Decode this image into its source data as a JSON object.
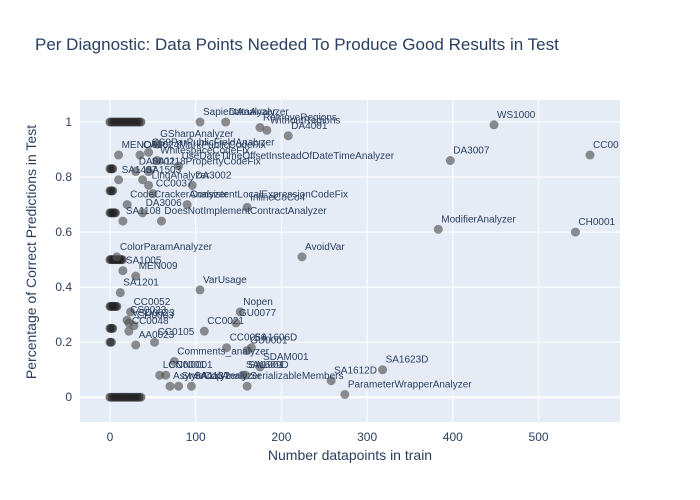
{
  "chart_data": {
    "type": "scatter",
    "title": "Per Diagnostic: Data Points Needed To Produce Good Results in Test",
    "xlabel": "Number datapoints in train",
    "ylabel": "Percentage of Correct Predictions in Test",
    "xlim": [
      -35,
      595
    ],
    "ylim": [
      -0.09,
      1.08
    ],
    "xticks": [
      0,
      100,
      200,
      300,
      400,
      500
    ],
    "yticks": [
      0,
      0.2,
      0.4,
      0.6,
      0.8,
      1
    ],
    "grid": true,
    "marker_color": "#555555",
    "background_color": "#e5ecf6",
    "points": [
      {
        "x": 448,
        "y": 0.99,
        "label": "WS1000"
      },
      {
        "x": 560,
        "y": 0.88,
        "label": "CC00"
      },
      {
        "x": 397,
        "y": 0.86,
        "label": "DA3007"
      },
      {
        "x": 383,
        "y": 0.61,
        "label": "ModifierAnalyzer"
      },
      {
        "x": 543,
        "y": 0.6,
        "label": "CH0001"
      },
      {
        "x": 224,
        "y": 0.51,
        "label": "AvoidVar"
      },
      {
        "x": 318,
        "y": 0.1,
        "label": "SA1623D"
      },
      {
        "x": 258,
        "y": 0.06,
        "label": "SA1612D"
      },
      {
        "x": 274,
        "y": 0.01,
        "label": "ParameterWrapperAnalyzer"
      },
      {
        "x": 208,
        "y": 0.95,
        "label": "DA4001"
      },
      {
        "x": 183,
        "y": 0.97,
        "label": "WithoutRegions"
      },
      {
        "x": 175,
        "y": 0.98,
        "label": "RemoveRegions"
      },
      {
        "x": 135,
        "y": 1.0,
        "label": "DataAnalyzer"
      },
      {
        "x": 105,
        "y": 1.0,
        "label": "SapientAnalyzer"
      },
      {
        "x": 45,
        "y": 0.89,
        "label": "CS9ParPublicFieldAnalyzer"
      },
      {
        "x": 55,
        "y": 0.92,
        "label": "GSharpAnalyzer"
      },
      {
        "x": 35,
        "y": 0.88,
        "label": "CA1024MarkPublicCodeFix"
      },
      {
        "x": 10,
        "y": 0.88,
        "label": "MENO006"
      },
      {
        "x": 55,
        "y": 0.86,
        "label": "WhitespaceCodeFix"
      },
      {
        "x": 80,
        "y": 0.84,
        "label": "UseDateTimeOffsetInsteadOfDateTimeAnalyzer"
      },
      {
        "x": 45,
        "y": 0.82,
        "label": "SA1118PropertyCodeFix"
      },
      {
        "x": 30,
        "y": 0.82,
        "label": "DA0002"
      },
      {
        "x": 10,
        "y": 0.79,
        "label": "SA1407"
      },
      {
        "x": 38,
        "y": 0.79,
        "label": "SA1503"
      },
      {
        "x": 45,
        "y": 0.77,
        "label": "LinqAnalyzer"
      },
      {
        "x": 96,
        "y": 0.77,
        "label": "DA3002"
      },
      {
        "x": 50,
        "y": 0.74,
        "label": "CC0037"
      },
      {
        "x": 20,
        "y": 0.7,
        "label": "CodeCrackerAnalyzer"
      },
      {
        "x": 90,
        "y": 0.7,
        "label": "ConsistentLocalExpressionCodeFix"
      },
      {
        "x": 160,
        "y": 0.69,
        "label": "InlineCoCo4"
      },
      {
        "x": 38,
        "y": 0.67,
        "label": "DA3006"
      },
      {
        "x": 15,
        "y": 0.64,
        "label": "SA1108"
      },
      {
        "x": 60,
        "y": 0.64,
        "label": "DoesNotImplementContractAnalyzer"
      },
      {
        "x": 8,
        "y": 0.51,
        "label": "ColorParamAnalyzer"
      },
      {
        "x": 15,
        "y": 0.46,
        "label": "SA1005"
      },
      {
        "x": 30,
        "y": 0.44,
        "label": "MEN009"
      },
      {
        "x": 105,
        "y": 0.39,
        "label": "VarUsage"
      },
      {
        "x": 12,
        "y": 0.38,
        "label": "SA1201"
      },
      {
        "x": 152,
        "y": 0.31,
        "label": "Nopen"
      },
      {
        "x": 147,
        "y": 0.27,
        "label": "GU0077"
      },
      {
        "x": 24,
        "y": 0.31,
        "label": "CC0052"
      },
      {
        "x": 20,
        "y": 0.28,
        "label": "CS0023"
      },
      {
        "x": 22,
        "y": 0.27,
        "label": "VSD0023"
      },
      {
        "x": 28,
        "y": 0.26,
        "label": "CH0003"
      },
      {
        "x": 22,
        "y": 0.24,
        "label": "CC0048"
      },
      {
        "x": 110,
        "y": 0.24,
        "label": "CC0021"
      },
      {
        "x": 52,
        "y": 0.2,
        "label": "CC0105"
      },
      {
        "x": 30,
        "y": 0.19,
        "label": "AA0023"
      },
      {
        "x": 136,
        "y": 0.18,
        "label": "CC0056"
      },
      {
        "x": 165,
        "y": 0.18,
        "label": "SA1606D"
      },
      {
        "x": 160,
        "y": 0.17,
        "label": "GU0001"
      },
      {
        "x": 75,
        "y": 0.13,
        "label": "Comments_analyzer"
      },
      {
        "x": 175,
        "y": 0.11,
        "label": "SDAM001"
      },
      {
        "x": 155,
        "y": 0.08,
        "label": "SA1609D"
      },
      {
        "x": 158,
        "y": 0.08,
        "label": "SA1001"
      },
      {
        "x": 65,
        "y": 0.08,
        "label": "CCN0001"
      },
      {
        "x": 58,
        "y": 0.08,
        "label": "LCN0001"
      },
      {
        "x": 70,
        "y": 0.04,
        "label": "AsyncAnalyzer"
      },
      {
        "x": 80,
        "y": 0.04,
        "label": "StyleCopAnalyzer"
      },
      {
        "x": 95,
        "y": 0.04,
        "label": "SA1137"
      },
      {
        "x": 160,
        "y": 0.04,
        "label": "SerializableMembers"
      }
    ]
  }
}
